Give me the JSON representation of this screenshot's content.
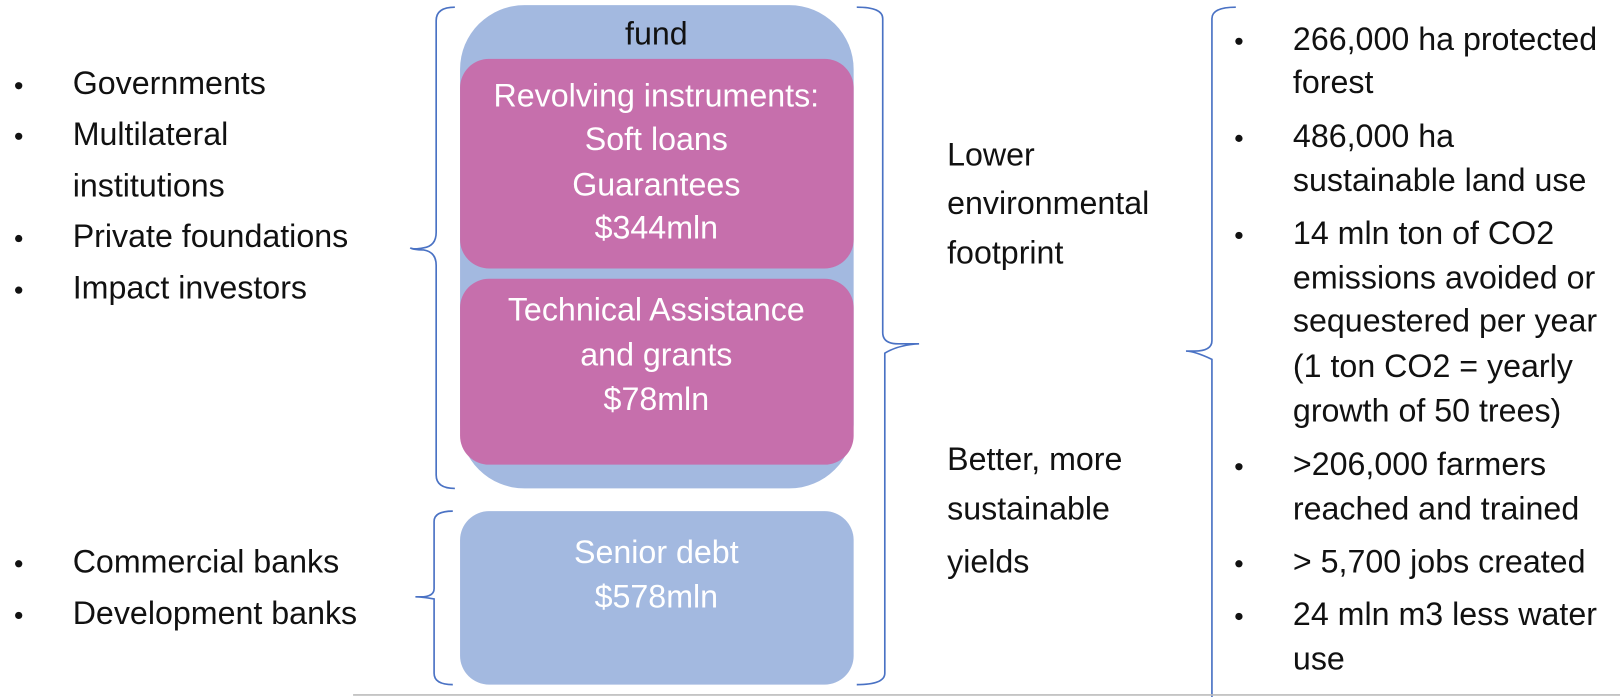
{
  "funders": {
    "concessional": [
      [
        "Governments"
      ],
      [
        "Multilateral",
        "institutions"
      ],
      [
        "Private foundations"
      ],
      [
        "Impact investors"
      ]
    ],
    "commercial": [
      [
        "Commercial banks"
      ],
      [
        "Development banks"
      ]
    ]
  },
  "fund": {
    "title": "fund",
    "boxes": [
      {
        "lines": [
          "Revolving instruments:",
          "Soft loans",
          "Guarantees",
          "$344mln"
        ]
      },
      {
        "lines": [
          "Technical Assistance",
          "and grants",
          "$78mln"
        ]
      }
    ],
    "senior_debt": {
      "lines": [
        "Senior debt",
        "$578mln"
      ]
    }
  },
  "outcomes": {
    "labels": [
      [
        "Lower",
        "environmental",
        "footprint"
      ],
      [
        "Better, more",
        "sustainable",
        "yields"
      ]
    ],
    "results": [
      [
        "266,000 ha protected",
        "forest"
      ],
      [
        "486,000 ha",
        "sustainable land use"
      ],
      [
        "14 mln ton of CO2",
        "emissions avoided or",
        "sequestered per year",
        "(1 ton CO2 = yearly",
        "growth of 50 trees)"
      ],
      [
        ">206,000 farmers",
        "reached and trained"
      ],
      [
        "> 5,700 jobs created"
      ],
      [
        "24 mln m3 less water",
        "use"
      ]
    ]
  }
}
